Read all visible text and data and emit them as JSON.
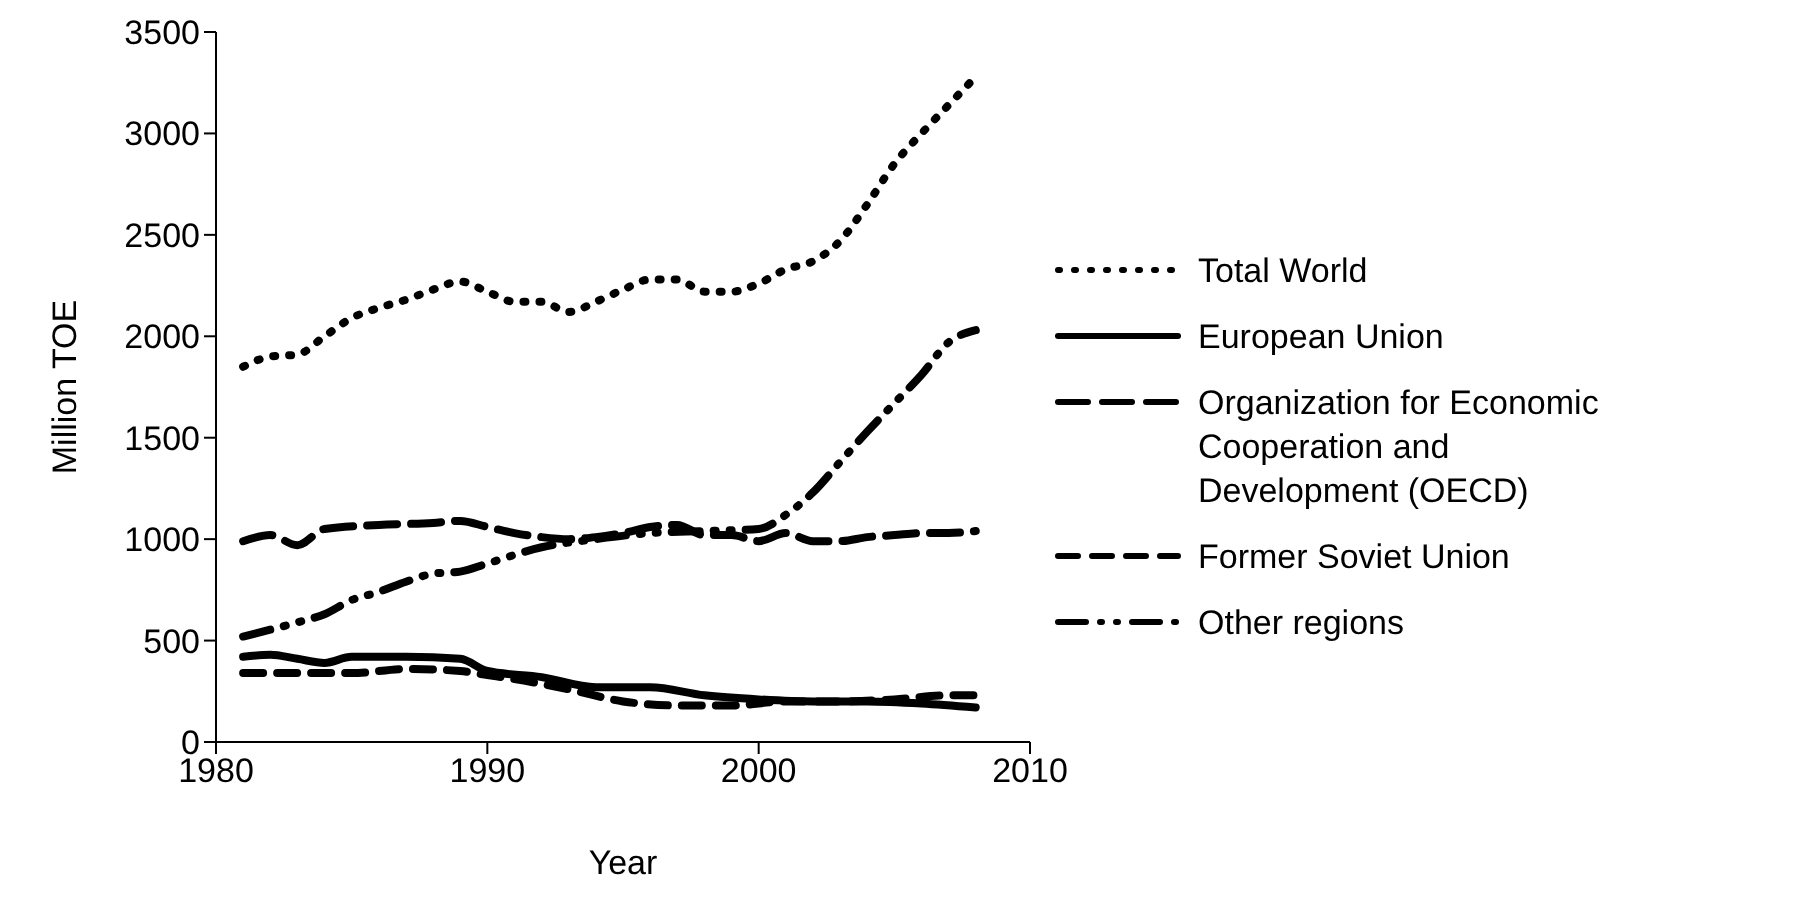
{
  "chart_data": {
    "type": "line",
    "xlabel": "Year",
    "ylabel": "Million TOE",
    "xlim": [
      1980,
      2010
    ],
    "xticks": [
      1980,
      1990,
      2000,
      2010
    ],
    "ylim": [
      0,
      3500
    ],
    "yticks": [
      0,
      500,
      1000,
      1500,
      2000,
      2500,
      3000,
      3500
    ],
    "grid": false,
    "legend": "right",
    "marker": "none",
    "series": [
      {
        "name": "Total World",
        "color": "#000000",
        "line_style": "dotted",
        "x": [
          1981,
          1982,
          1983,
          1984,
          1985,
          1986,
          1987,
          1988,
          1989,
          1990,
          1991,
          1992,
          1993,
          1994,
          1995,
          1996,
          1997,
          1998,
          1999,
          2000,
          2001,
          2002,
          2003,
          2004,
          2005,
          2006,
          2007,
          2008
        ],
        "values": [
          1850,
          1900,
          1910,
          2000,
          2090,
          2140,
          2180,
          2230,
          2270,
          2220,
          2170,
          2170,
          2120,
          2170,
          2230,
          2280,
          2280,
          2220,
          2220,
          2260,
          2330,
          2370,
          2470,
          2650,
          2850,
          3000,
          3140,
          3280
        ]
      },
      {
        "name": "European Union",
        "color": "#000000",
        "line_style": "solid",
        "x": [
          1981,
          1982,
          1983,
          1984,
          1985,
          1987,
          1989,
          1990,
          1992,
          1994,
          1996,
          1998,
          2000,
          2002,
          2004,
          2006,
          2008
        ],
        "values": [
          420,
          430,
          410,
          390,
          420,
          420,
          410,
          350,
          320,
          270,
          270,
          230,
          210,
          200,
          200,
          190,
          170
        ]
      },
      {
        "name": "Organization for Economic Cooperation and Development (OECD)",
        "color": "#000000",
        "line_style": "dashed",
        "x": [
          1981,
          1982,
          1983,
          1984,
          1986,
          1988,
          1989,
          1990,
          1991,
          1992,
          1993,
          1994,
          1995,
          1996,
          1997,
          1998,
          1999,
          2000,
          2001,
          2002,
          2003,
          2004,
          2005,
          2006,
          2007,
          2008
        ],
        "values": [
          990,
          1020,
          970,
          1050,
          1070,
          1080,
          1090,
          1060,
          1030,
          1010,
          1000,
          1010,
          1030,
          1060,
          1070,
          1020,
          1020,
          990,
          1030,
          990,
          990,
          1010,
          1020,
          1030,
          1030,
          1040
        ]
      },
      {
        "name": "Former Soviet Union",
        "color": "#000000",
        "line_style": "dashed",
        "x": [
          1981,
          1983,
          1985,
          1987,
          1989,
          1990,
          1991,
          1993,
          1995,
          1997,
          1999,
          2001,
          2003,
          2005,
          2007,
          2008
        ],
        "values": [
          340,
          340,
          340,
          360,
          350,
          330,
          310,
          260,
          200,
          180,
          180,
          200,
          200,
          210,
          230,
          230
        ]
      },
      {
        "name": "Other regions",
        "color": "#000000",
        "line_style": "dotted",
        "x": [
          1981,
          1983,
          1984,
          1985,
          1986,
          1987,
          1988,
          1989,
          1990,
          1992,
          1994,
          1996,
          1998,
          2000,
          2001,
          2002,
          2003,
          2004,
          2005,
          2006,
          2007,
          2008
        ],
        "values": [
          520,
          590,
          630,
          700,
          740,
          790,
          830,
          840,
          880,
          960,
          1000,
          1030,
          1040,
          1050,
          1120,
          1230,
          1380,
          1530,
          1670,
          1810,
          1970,
          2030
        ]
      }
    ]
  }
}
